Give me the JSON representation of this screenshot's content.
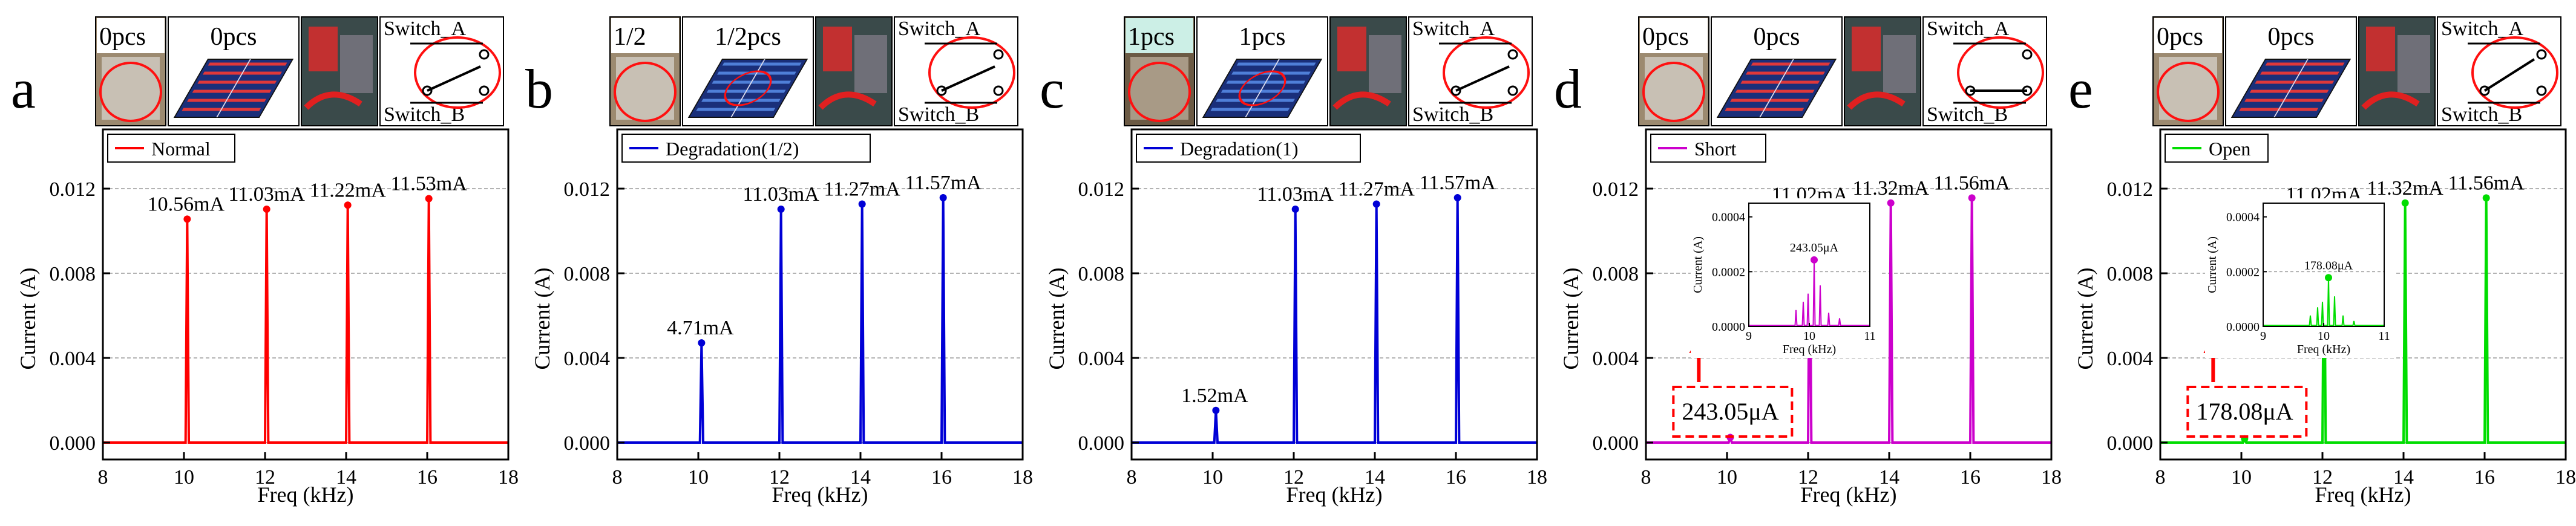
{
  "colors": {
    "normal": "#ff0000",
    "degradation": "#0000d6",
    "short": "#cc00cc",
    "open": "#00dd00",
    "callout": "#ff0000",
    "panel_blue": "#1a2f7a",
    "panel_stripe_red": "#e0383a",
    "panel_stripe_blue": "#4f7fd8"
  },
  "chart_data": [
    {
      "type": "line",
      "panel_letter": "a",
      "badge_label": "0pcs",
      "shading_label": "0pcs",
      "switch_top": "Switch_A",
      "switch_bottom": "Switch_B",
      "legend": "Normal",
      "xlabel": "Freq (kHz)",
      "ylabel": "Current (A)",
      "xlim": [
        8,
        18
      ],
      "ylim": [
        -0.0008,
        0.0148
      ],
      "xticks": [
        "8",
        "10",
        "12",
        "14",
        "16",
        "18"
      ],
      "yticks": [
        "0.000",
        "0.004",
        "0.008",
        "0.012"
      ],
      "peaks": [
        {
          "x": 10.08,
          "y": 0.01056,
          "label": "10.56mA"
        },
        {
          "x": 12.04,
          "y": 0.01103,
          "label": "11.03mA"
        },
        {
          "x": 14.04,
          "y": 0.01122,
          "label": "11.22mA"
        },
        {
          "x": 16.04,
          "y": 0.01153,
          "label": "11.53mA"
        }
      ]
    },
    {
      "type": "line",
      "panel_letter": "b",
      "badge_label": "1/2",
      "shading_label": "1/2pcs",
      "switch_top": "Switch_A",
      "switch_bottom": "Switch_B",
      "legend": "Degradation(1/2)",
      "xlabel": "Freq (kHz)",
      "ylabel": "Current (A)",
      "xlim": [
        8,
        18
      ],
      "ylim": [
        -0.0008,
        0.0148
      ],
      "xticks": [
        "8",
        "10",
        "12",
        "14",
        "16",
        "18"
      ],
      "yticks": [
        "0.000",
        "0.004",
        "0.008",
        "0.012"
      ],
      "peaks": [
        {
          "x": 10.08,
          "y": 0.00471,
          "label": "4.71mA"
        },
        {
          "x": 12.04,
          "y": 0.01103,
          "label": "11.03mA"
        },
        {
          "x": 14.04,
          "y": 0.01127,
          "label": "11.27mA"
        },
        {
          "x": 16.04,
          "y": 0.01157,
          "label": "11.57mA"
        }
      ]
    },
    {
      "type": "line",
      "panel_letter": "c",
      "badge_label": "1pcs",
      "shading_label": "1pcs",
      "switch_top": "Switch_A",
      "switch_bottom": "Switch_B",
      "legend": "Degradation(1)",
      "xlabel": "Freq (kHz)",
      "ylabel": "Current (A)",
      "xlim": [
        8,
        18
      ],
      "ylim": [
        -0.0008,
        0.0148
      ],
      "xticks": [
        "8",
        "10",
        "12",
        "14",
        "16",
        "18"
      ],
      "yticks": [
        "0.000",
        "0.004",
        "0.008",
        "0.012"
      ],
      "peaks": [
        {
          "x": 10.08,
          "y": 0.00152,
          "label": "1.52mA"
        },
        {
          "x": 12.04,
          "y": 0.01103,
          "label": "11.03mA"
        },
        {
          "x": 14.04,
          "y": 0.01127,
          "label": "11.27mA"
        },
        {
          "x": 16.04,
          "y": 0.01157,
          "label": "11.57mA"
        }
      ]
    },
    {
      "type": "line",
      "panel_letter": "d",
      "badge_label": "0pcs",
      "shading_label": "0pcs",
      "switch_top": "Switch_A",
      "switch_bottom": "Switch_B",
      "legend": "Short",
      "xlabel": "Freq (kHz)",
      "ylabel": "Current (A)",
      "xlim": [
        8,
        18
      ],
      "ylim": [
        -0.0008,
        0.0148
      ],
      "xticks": [
        "8",
        "10",
        "12",
        "14",
        "16",
        "18"
      ],
      "yticks": [
        "0.000",
        "0.004",
        "0.008",
        "0.012"
      ],
      "peaks": [
        {
          "x": 10.08,
          "y": 0.00024305,
          "label": ""
        },
        {
          "x": 12.04,
          "y": 0.01102,
          "label": "11.02mA"
        },
        {
          "x": 14.04,
          "y": 0.01132,
          "label": "11.32mA"
        },
        {
          "x": 16.04,
          "y": 0.01156,
          "label": "11.56mA"
        }
      ],
      "callout": "243.05μA",
      "inset": {
        "xlabel": "Freq (kHz)",
        "ylabel": "Current (A)",
        "xlim": [
          9,
          11
        ],
        "ylim": [
          0,
          0.00045
        ],
        "xticks": [
          "9",
          "10",
          "11"
        ],
        "yticks": [
          "0.0000",
          "0.0002",
          "0.0004"
        ],
        "peak_label": "243.05μA",
        "peak": {
          "x": 10.08,
          "y": 0.00024305
        },
        "minor_peaks": [
          {
            "x": 9.78,
            "y": 6e-05
          },
          {
            "x": 9.9,
            "y": 9e-05
          },
          {
            "x": 9.98,
            "y": 0.00012
          },
          {
            "x": 10.18,
            "y": 0.00015
          },
          {
            "x": 10.32,
            "y": 5e-05
          },
          {
            "x": 10.5,
            "y": 3e-05
          }
        ]
      }
    },
    {
      "type": "line",
      "panel_letter": "e",
      "badge_label": "0pcs",
      "shading_label": "0pcs",
      "switch_top": "Switch_A",
      "switch_bottom": "Switch_B",
      "legend": "Open",
      "xlabel": "Freq (kHz)",
      "ylabel": "Current (A)",
      "xlim": [
        8,
        18
      ],
      "ylim": [
        -0.0008,
        0.0148
      ],
      "xticks": [
        "8",
        "10",
        "12",
        "14",
        "16",
        "18"
      ],
      "yticks": [
        "0.000",
        "0.004",
        "0.008",
        "0.012"
      ],
      "peaks": [
        {
          "x": 10.08,
          "y": 0.00017808,
          "label": ""
        },
        {
          "x": 12.04,
          "y": 0.01102,
          "label": "11.02mA"
        },
        {
          "x": 14.04,
          "y": 0.01132,
          "label": "11.32mA"
        },
        {
          "x": 16.04,
          "y": 0.01156,
          "label": "11.56mA"
        }
      ],
      "callout": "178.08μA",
      "inset": {
        "xlabel": "Freq (kHz)",
        "ylabel": "Current (A)",
        "xlim": [
          9,
          11
        ],
        "ylim": [
          0,
          0.00045
        ],
        "xticks": [
          "9",
          "10",
          "11"
        ],
        "yticks": [
          "0.0000",
          "0.0002",
          "0.0004"
        ],
        "peak_label": "178.08μA",
        "peak": {
          "x": 10.08,
          "y": 0.00017808
        },
        "minor_peaks": [
          {
            "x": 9.78,
            "y": 4e-05
          },
          {
            "x": 9.9,
            "y": 7e-05
          },
          {
            "x": 9.98,
            "y": 9e-05
          },
          {
            "x": 10.18,
            "y": 0.00011
          },
          {
            "x": 10.32,
            "y": 4e-05
          },
          {
            "x": 10.5,
            "y": 2e-05
          }
        ]
      }
    }
  ]
}
